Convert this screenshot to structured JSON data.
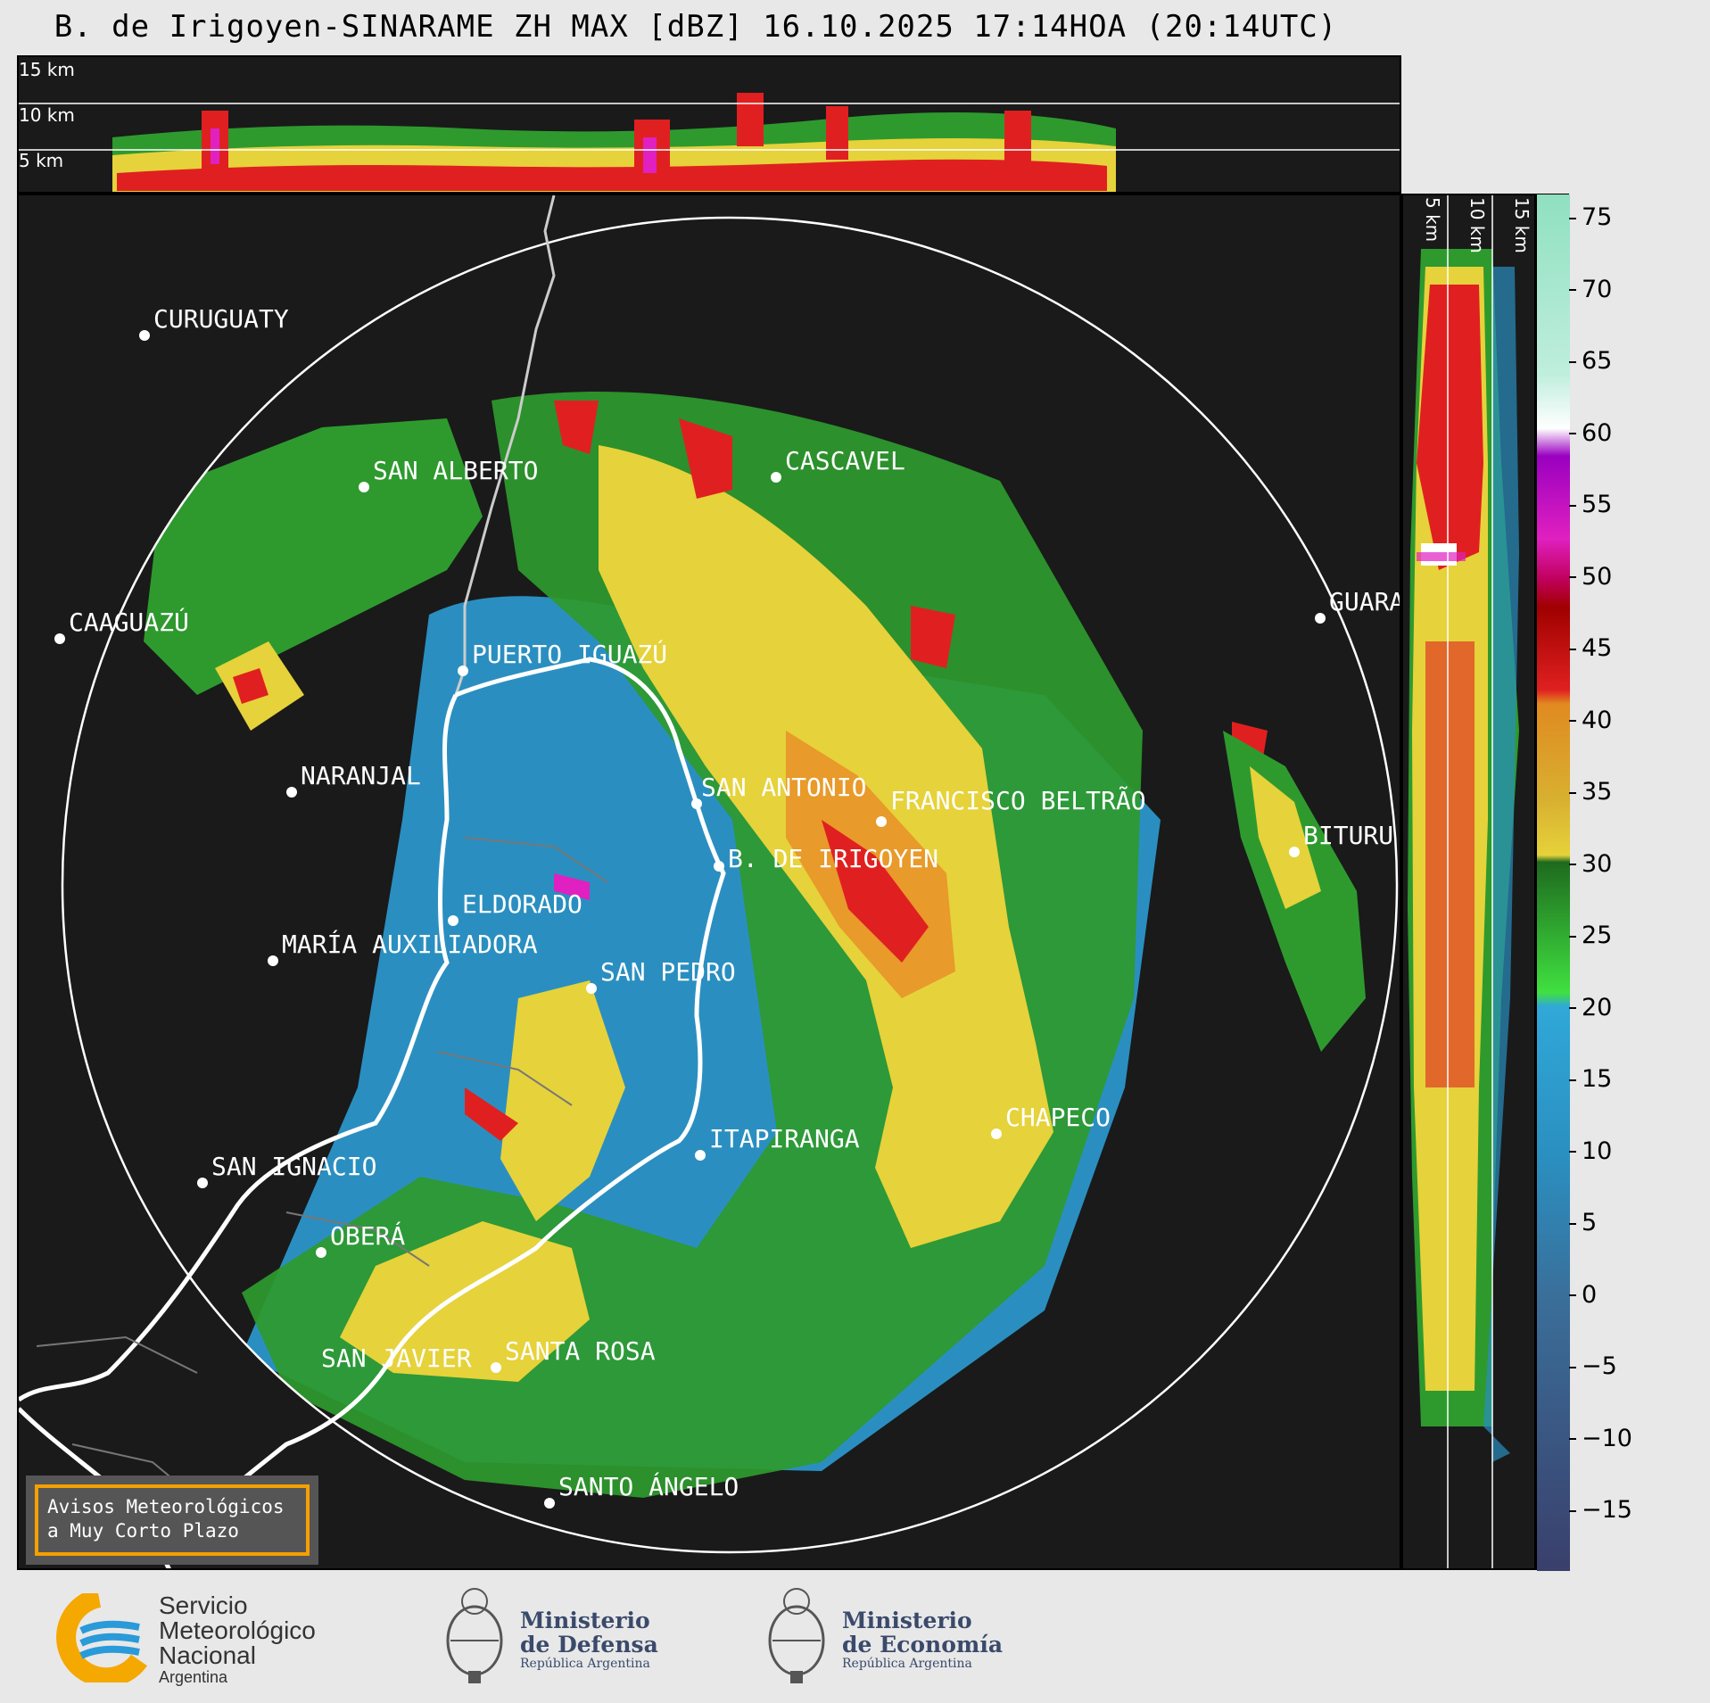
{
  "title": "B. de Irigoyen-SINARAME ZH MAX [dBZ] 16.10.2025 17:14HOA (20:14UTC)",
  "top_panel": {
    "height_labels": [
      "15 km",
      "10 km",
      "5 km"
    ]
  },
  "side_panel": {
    "height_labels": [
      "5 km",
      "10 km",
      "15 km"
    ]
  },
  "colorbar": {
    "ticks": [
      "75",
      "70",
      "65",
      "60",
      "55",
      "50",
      "45",
      "40",
      "35",
      "30",
      "25",
      "20",
      "15",
      "10",
      "5",
      "0",
      "−5",
      "−10",
      "−15"
    ],
    "colors": {
      "range_-20_0": "#3a3f6b",
      "range_0_18": "#2a8fc0",
      "range_18_30": "#2e9a2e",
      "range_30_42": "#e6d23a",
      "range_42_50": "#e02020",
      "range_50_58": "#e020c0",
      "range_58_62": "#ffffff",
      "range_62_76": "#8fe0c0"
    }
  },
  "cities": [
    {
      "name": "CURUGUATY"
    },
    {
      "name": "SAN ALBERTO"
    },
    {
      "name": "CAAGUAZÚ"
    },
    {
      "name": "CASCAVEL"
    },
    {
      "name": "GUARA"
    },
    {
      "name": "PUERTO IGUAZÚ"
    },
    {
      "name": "NARANJAL"
    },
    {
      "name": "SAN ANTONIO"
    },
    {
      "name": "FRANCISCO BELTRÃO"
    },
    {
      "name": "BITURU"
    },
    {
      "name": "B. DE IRIGOYEN"
    },
    {
      "name": "ELDORADO"
    },
    {
      "name": "MARÍA AUXILIADORA"
    },
    {
      "name": "SAN PEDRO"
    },
    {
      "name": "ITAPIRANGA"
    },
    {
      "name": "CHAPECO"
    },
    {
      "name": "SAN IGNACIO"
    },
    {
      "name": "OBERÁ"
    },
    {
      "name": "SAN JAVIER"
    },
    {
      "name": "SANTA ROSA"
    },
    {
      "name": "SANTO ÁNGELO"
    }
  ],
  "warning_box": {
    "line1": "Avisos Meteorológicos",
    "line2": "a Muy Corto Plazo"
  },
  "footer": {
    "smn": {
      "line1": "Servicio",
      "line2": "Meteorológico",
      "line3": "Nacional",
      "line4": "Argentina"
    },
    "defensa": {
      "line1": "Ministerio",
      "line2": "de Defensa",
      "sub": "República Argentina"
    },
    "economia": {
      "line1": "Ministerio",
      "line2": "de Economía",
      "sub": "República Argentina"
    }
  }
}
